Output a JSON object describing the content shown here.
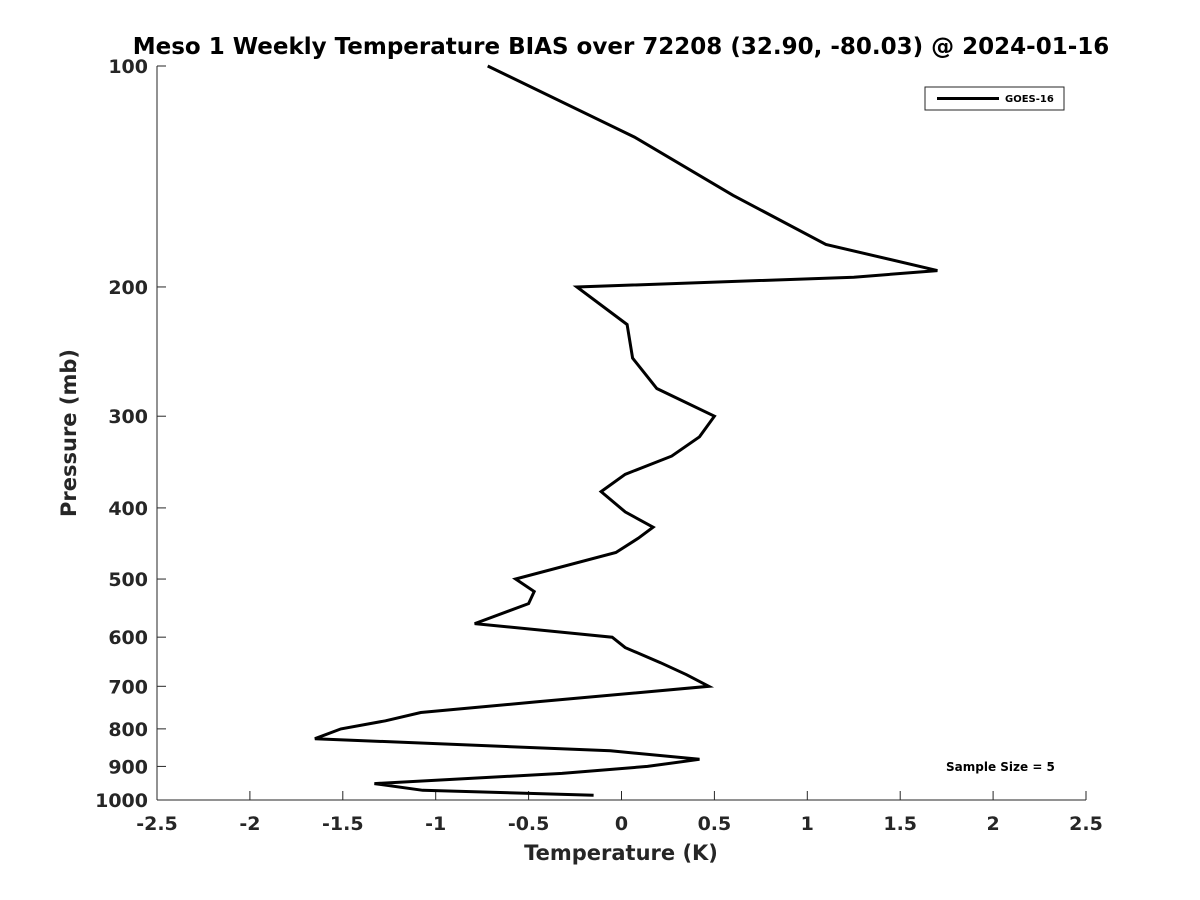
{
  "chart_data": {
    "type": "line",
    "title": "Meso 1 Weekly Temperature BIAS over 72208 (32.90, -80.03) @ 2024-01-16",
    "xlabel": "Temperature (K)",
    "ylabel": "Pressure (mb)",
    "xlim": [
      -2.5,
      2.5
    ],
    "ylim": [
      100,
      1000
    ],
    "y_scale": "log",
    "y_reversed": true,
    "x_ticks": [
      "-2.5",
      "-2",
      "-1.5",
      "-1",
      "-0.5",
      "0",
      "0.5",
      "1",
      "1.5",
      "2",
      "2.5"
    ],
    "x_tick_values": [
      -2.5,
      -2,
      -1.5,
      -1,
      -0.5,
      0,
      0.5,
      1,
      1.5,
      2,
      2.5
    ],
    "y_ticks": [
      "100",
      "200",
      "300",
      "400",
      "500",
      "600",
      "700",
      "800",
      "900",
      "1000"
    ],
    "y_tick_values": [
      100,
      200,
      300,
      400,
      500,
      600,
      700,
      800,
      900,
      1000
    ],
    "grid": false,
    "legend_position": "top-right",
    "annotation": "Sample Size = 5",
    "series": [
      {
        "name": "GOES-16",
        "color": "#000000",
        "points": [
          {
            "x": -0.72,
            "p": 100
          },
          {
            "x": 0.07,
            "p": 125
          },
          {
            "x": 0.6,
            "p": 150
          },
          {
            "x": 1.1,
            "p": 175
          },
          {
            "x": 1.7,
            "p": 190
          },
          {
            "x": 1.25,
            "p": 194
          },
          {
            "x": -0.24,
            "p": 200
          },
          {
            "x": 0.03,
            "p": 225
          },
          {
            "x": 0.06,
            "p": 250
          },
          {
            "x": 0.19,
            "p": 275
          },
          {
            "x": 0.5,
            "p": 300
          },
          {
            "x": 0.42,
            "p": 320
          },
          {
            "x": 0.27,
            "p": 340
          },
          {
            "x": 0.02,
            "p": 360
          },
          {
            "x": -0.11,
            "p": 380
          },
          {
            "x": 0.02,
            "p": 405
          },
          {
            "x": 0.17,
            "p": 425
          },
          {
            "x": 0.09,
            "p": 440
          },
          {
            "x": -0.03,
            "p": 460
          },
          {
            "x": -0.57,
            "p": 500
          },
          {
            "x": -0.47,
            "p": 520
          },
          {
            "x": -0.5,
            "p": 540
          },
          {
            "x": -0.79,
            "p": 575
          },
          {
            "x": -0.05,
            "p": 600
          },
          {
            "x": 0.02,
            "p": 620
          },
          {
            "x": 0.21,
            "p": 650
          },
          {
            "x": 0.35,
            "p": 675
          },
          {
            "x": 0.47,
            "p": 700
          },
          {
            "x": -0.46,
            "p": 735
          },
          {
            "x": -1.08,
            "p": 760
          },
          {
            "x": -1.27,
            "p": 780
          },
          {
            "x": -1.51,
            "p": 800
          },
          {
            "x": -1.65,
            "p": 825
          },
          {
            "x": -0.06,
            "p": 857
          },
          {
            "x": 0.42,
            "p": 880
          },
          {
            "x": 0.14,
            "p": 900
          },
          {
            "x": -0.32,
            "p": 920
          },
          {
            "x": -1.33,
            "p": 950
          },
          {
            "x": -1.07,
            "p": 970
          },
          {
            "x": -0.15,
            "p": 985
          }
        ]
      }
    ]
  }
}
